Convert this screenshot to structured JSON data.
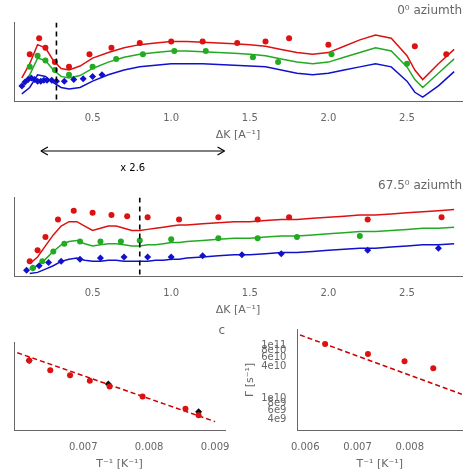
{
  "chart_data": [
    {
      "type": "line",
      "title": "0⁰ aziumth",
      "xlabel": "ΔK [A⁻¹]",
      "xlim": [
        0.0,
        2.85
      ],
      "xticks": [
        0.5,
        {
          "value": 1.0,
          "label": "1.0"
        },
        1.5,
        {
          "value": 2.0,
          "label": "2.0"
        },
        2.5
      ],
      "ylim": [
        0.0,
        1.0
      ],
      "yticks": [],
      "tick_labels": "x",
      "grid": false,
      "vline": 0.27,
      "annotation": "x 2.6",
      "series": [
        {
          "type": "line",
          "color": "#dd1111",
          "x": [
            0.05,
            0.1,
            0.15,
            0.2,
            0.25,
            0.3,
            0.35,
            0.42,
            0.5,
            0.6,
            0.7,
            0.8,
            0.9,
            1.0,
            1.1,
            1.2,
            1.3,
            1.4,
            1.5,
            1.6,
            1.7,
            1.8,
            1.9,
            2.0,
            2.1,
            2.2,
            2.3,
            2.4,
            2.5,
            2.55,
            2.6,
            2.7,
            2.8
          ],
          "values": [
            0.3,
            0.48,
            0.72,
            0.68,
            0.52,
            0.42,
            0.4,
            0.45,
            0.55,
            0.62,
            0.68,
            0.72,
            0.74,
            0.76,
            0.76,
            0.75,
            0.74,
            0.73,
            0.72,
            0.7,
            0.66,
            0.62,
            0.6,
            0.62,
            0.7,
            0.78,
            0.84,
            0.8,
            0.58,
            0.4,
            0.28,
            0.48,
            0.66
          ]
        },
        {
          "type": "line",
          "color": "#22aa22",
          "x": [
            0.05,
            0.1,
            0.15,
            0.2,
            0.25,
            0.3,
            0.35,
            0.42,
            0.5,
            0.6,
            0.7,
            0.8,
            0.9,
            1.0,
            1.1,
            1.2,
            1.3,
            1.4,
            1.5,
            1.6,
            1.7,
            1.8,
            1.9,
            2.0,
            2.1,
            2.2,
            2.3,
            2.4,
            2.5,
            2.55,
            2.6,
            2.7,
            2.8
          ],
          "values": [
            0.2,
            0.34,
            0.55,
            0.52,
            0.4,
            0.32,
            0.3,
            0.33,
            0.42,
            0.5,
            0.56,
            0.6,
            0.62,
            0.64,
            0.64,
            0.63,
            0.62,
            0.61,
            0.6,
            0.58,
            0.54,
            0.5,
            0.48,
            0.5,
            0.56,
            0.62,
            0.68,
            0.64,
            0.44,
            0.28,
            0.18,
            0.36,
            0.54
          ]
        },
        {
          "type": "line",
          "color": "#1111cc",
          "x": [
            0.05,
            0.1,
            0.15,
            0.2,
            0.25,
            0.3,
            0.35,
            0.42,
            0.5,
            0.6,
            0.7,
            0.8,
            0.9,
            1.0,
            1.1,
            1.2,
            1.3,
            1.4,
            1.5,
            1.6,
            1.7,
            1.8,
            1.9,
            2.0,
            2.1,
            2.2,
            2.3,
            2.4,
            2.5,
            2.55,
            2.6,
            2.7,
            2.8
          ],
          "values": [
            0.1,
            0.18,
            0.34,
            0.32,
            0.24,
            0.18,
            0.16,
            0.18,
            0.26,
            0.34,
            0.4,
            0.44,
            0.46,
            0.48,
            0.48,
            0.48,
            0.47,
            0.46,
            0.45,
            0.44,
            0.4,
            0.36,
            0.34,
            0.36,
            0.4,
            0.44,
            0.48,
            0.44,
            0.26,
            0.12,
            0.06,
            0.2,
            0.38
          ]
        },
        {
          "type": "scatter",
          "marker": "circle",
          "color": "#dd1111",
          "x": [
            0.1,
            0.16,
            0.2,
            0.26,
            0.35,
            0.48,
            0.62,
            0.8,
            1.0,
            1.2,
            1.42,
            1.6,
            1.75,
            2.0,
            2.55,
            2.75
          ],
          "values": [
            0.6,
            0.8,
            0.68,
            0.5,
            0.44,
            0.6,
            0.68,
            0.74,
            0.76,
            0.76,
            0.74,
            0.76,
            0.8,
            0.72,
            0.7,
            0.6
          ]
        },
        {
          "type": "scatter",
          "marker": "circle",
          "color": "#22aa22",
          "x": [
            0.1,
            0.15,
            0.2,
            0.26,
            0.35,
            0.5,
            0.65,
            0.82,
            1.02,
            1.22,
            1.52,
            1.68,
            2.02,
            2.5
          ],
          "values": [
            0.44,
            0.58,
            0.52,
            0.4,
            0.34,
            0.44,
            0.54,
            0.6,
            0.64,
            0.64,
            0.56,
            0.5,
            0.6,
            0.48
          ]
        },
        {
          "type": "scatter",
          "marker": "diamond",
          "color": "#1111cc",
          "x": [
            0.05,
            0.07,
            0.09,
            0.11,
            0.13,
            0.15,
            0.17,
            0.19,
            0.21,
            0.24,
            0.27,
            0.32,
            0.38,
            0.44,
            0.5,
            0.56
          ],
          "values": [
            0.2,
            0.25,
            0.28,
            0.3,
            0.28,
            0.26,
            0.26,
            0.27,
            0.27,
            0.27,
            0.26,
            0.26,
            0.28,
            0.29,
            0.32,
            0.34
          ]
        }
      ]
    },
    {
      "type": "line",
      "title": "67.5⁰ aziumth",
      "xlabel": "ΔK [A⁻¹]",
      "xlim": [
        0.0,
        2.85
      ],
      "xticks": [
        0.5,
        {
          "value": 1.0,
          "label": "1.0"
        },
        1.5,
        {
          "value": 2.0,
          "label": "2.0"
        },
        2.5
      ],
      "ylim": [
        0.0,
        0.72
      ],
      "yticks": [],
      "tick_labels": "x",
      "grid": false,
      "vline": 0.8,
      "series": [
        {
          "type": "line",
          "color": "#dd1111",
          "x": [
            0.1,
            0.15,
            0.2,
            0.25,
            0.3,
            0.35,
            0.4,
            0.45,
            0.5,
            0.55,
            0.6,
            0.65,
            0.7,
            0.75,
            0.8,
            0.85,
            0.9,
            0.95,
            1.0,
            1.05,
            1.1,
            1.2,
            1.3,
            1.4,
            1.5,
            1.6,
            1.7,
            1.8,
            1.9,
            2.0,
            2.1,
            2.2,
            2.3,
            2.4,
            2.5,
            2.6,
            2.7,
            2.8
          ],
          "values": [
            0.12,
            0.18,
            0.28,
            0.38,
            0.46,
            0.5,
            0.5,
            0.46,
            0.42,
            0.44,
            0.46,
            0.46,
            0.44,
            0.42,
            0.42,
            0.43,
            0.44,
            0.45,
            0.46,
            0.47,
            0.47,
            0.48,
            0.49,
            0.5,
            0.5,
            0.51,
            0.52,
            0.52,
            0.53,
            0.54,
            0.55,
            0.56,
            0.56,
            0.57,
            0.58,
            0.59,
            0.6,
            0.61
          ]
        },
        {
          "type": "line",
          "color": "#22aa22",
          "x": [
            0.1,
            0.15,
            0.2,
            0.25,
            0.3,
            0.35,
            0.4,
            0.45,
            0.5,
            0.55,
            0.6,
            0.65,
            0.7,
            0.75,
            0.8,
            0.85,
            0.9,
            0.95,
            1.0,
            1.05,
            1.1,
            1.2,
            1.3,
            1.4,
            1.5,
            1.6,
            1.7,
            1.8,
            1.9,
            2.0,
            2.1,
            2.2,
            2.3,
            2.4,
            2.5,
            2.6,
            2.7,
            2.8
          ],
          "values": [
            0.07,
            0.1,
            0.16,
            0.23,
            0.29,
            0.32,
            0.33,
            0.3,
            0.28,
            0.29,
            0.3,
            0.3,
            0.29,
            0.28,
            0.28,
            0.29,
            0.29,
            0.3,
            0.31,
            0.31,
            0.32,
            0.33,
            0.34,
            0.35,
            0.35,
            0.36,
            0.37,
            0.37,
            0.38,
            0.39,
            0.4,
            0.41,
            0.41,
            0.42,
            0.43,
            0.44,
            0.44,
            0.45
          ]
        },
        {
          "type": "line",
          "color": "#1111cc",
          "x": [
            0.1,
            0.15,
            0.2,
            0.25,
            0.3,
            0.35,
            0.4,
            0.45,
            0.5,
            0.55,
            0.6,
            0.65,
            0.7,
            0.75,
            0.8,
            0.85,
            0.9,
            0.95,
            1.0,
            1.05,
            1.1,
            1.2,
            1.3,
            1.4,
            1.5,
            1.6,
            1.7,
            1.8,
            1.9,
            2.0,
            2.1,
            2.2,
            2.3,
            2.4,
            2.5,
            2.6,
            2.7,
            2.8
          ],
          "values": [
            0.03,
            0.04,
            0.07,
            0.1,
            0.14,
            0.16,
            0.17,
            0.15,
            0.14,
            0.14,
            0.15,
            0.15,
            0.14,
            0.14,
            0.14,
            0.14,
            0.15,
            0.15,
            0.16,
            0.16,
            0.17,
            0.18,
            0.19,
            0.2,
            0.2,
            0.21,
            0.22,
            0.22,
            0.23,
            0.24,
            0.25,
            0.26,
            0.26,
            0.27,
            0.28,
            0.29,
            0.29,
            0.3
          ]
        },
        {
          "type": "scatter",
          "marker": "circle",
          "color": "#dd1111",
          "x": [
            0.1,
            0.15,
            0.2,
            0.28,
            0.38,
            0.5,
            0.62,
            0.72,
            0.85,
            1.05,
            1.3,
            1.55,
            1.75,
            2.25,
            2.72
          ],
          "values": [
            0.14,
            0.24,
            0.36,
            0.52,
            0.6,
            0.58,
            0.56,
            0.55,
            0.54,
            0.52,
            0.54,
            0.52,
            0.54,
            0.52,
            0.54
          ]
        },
        {
          "type": "scatter",
          "marker": "circle",
          "color": "#22aa22",
          "x": [
            0.12,
            0.18,
            0.25,
            0.32,
            0.42,
            0.55,
            0.68,
            0.8,
            1.0,
            1.3,
            1.55,
            1.8,
            2.2
          ],
          "values": [
            0.08,
            0.14,
            0.23,
            0.3,
            0.32,
            0.32,
            0.32,
            0.33,
            0.34,
            0.35,
            0.35,
            0.36,
            0.37
          ]
        },
        {
          "type": "scatter",
          "marker": "diamond",
          "color": "#1111cc",
          "x": [
            0.08,
            0.12,
            0.16,
            0.22,
            0.3,
            0.42,
            0.55,
            0.7,
            0.85,
            1.0,
            1.2,
            1.45,
            1.7,
            2.25,
            2.7
          ],
          "values": [
            0.06,
            0.08,
            0.1,
            0.13,
            0.14,
            0.16,
            0.17,
            0.18,
            0.18,
            0.18,
            0.19,
            0.2,
            0.21,
            0.24,
            0.26
          ]
        }
      ]
    },
    {
      "type": "line",
      "title": "c",
      "xlabel": "T⁻¹ [K⁻¹]",
      "log": "y",
      "xlim": [
        0.00595,
        0.00915
      ],
      "xticks": [
        0.007,
        0.008,
        0.009
      ],
      "ylim": [
        12000000000.0,
        600000000000.0
      ],
      "yticks": [],
      "tick_labels": "x",
      "grid": false,
      "series": [
        {
          "type": "line",
          "line_style": "dashed",
          "color": "#cc0000",
          "x": [
            0.006,
            0.009
          ],
          "values": [
            380000000000.0,
            18000000000.0
          ]
        },
        {
          "type": "scatter",
          "marker": "circle",
          "color": "#dd1111",
          "x": [
            0.00618,
            0.0065,
            0.0068,
            0.0071,
            0.0074,
            0.0079,
            0.00855,
            0.00875
          ],
          "values": [
            270000000000.0,
            175000000000.0,
            140000000000.0,
            110000000000.0,
            85000000000.0,
            55000000000.0,
            32000000000.0,
            24000000000.0
          ]
        },
        {
          "type": "scatter",
          "marker": "diamond",
          "color": "#111111",
          "x": [
            0.00618,
            0.00738,
            0.00875
          ],
          "values": [
            270000000000.0,
            95000000000.0,
            28000000000.0
          ]
        }
      ]
    },
    {
      "type": "line",
      "xlabel": "T⁻¹ [K⁻¹]",
      "ylabel": "Γ [s⁻¹]",
      "log": "y",
      "xlim": [
        0.00585,
        0.009
      ],
      "xticks": [
        0.006,
        0.007,
        0.008
      ],
      "ylim": [
        2500000000.0,
        200000000000.0
      ],
      "yticks": [
        {
          "value": 4000000000.0,
          "label": "4e9"
        },
        {
          "value": 6000000000.0,
          "label": "6e9"
        },
        {
          "value": 8000000000.0,
          "label": "8e9"
        },
        {
          "value": 10000000000.0,
          "label": "1e10"
        },
        {
          "value": 40000000000.0,
          "label": "4e10"
        },
        {
          "value": 60000000000.0,
          "label": "6e10"
        },
        {
          "value": 80000000000.0,
          "label": "8e10"
        },
        {
          "value": 100000000000.0,
          "label": "1e11"
        }
      ],
      "grid": false,
      "series": [
        {
          "type": "line",
          "line_style": "dashed",
          "color": "#cc0000",
          "x": [
            0.0059,
            0.009
          ],
          "values": [
            155000000000.0,
            12000000000.0
          ]
        },
        {
          "type": "scatter",
          "marker": "circle",
          "color": "#dd1111",
          "x": [
            0.00638,
            0.0072,
            0.0079,
            0.00845
          ],
          "values": [
            105000000000.0,
            68000000000.0,
            50000000000.0,
            37000000000.0
          ]
        }
      ]
    }
  ]
}
